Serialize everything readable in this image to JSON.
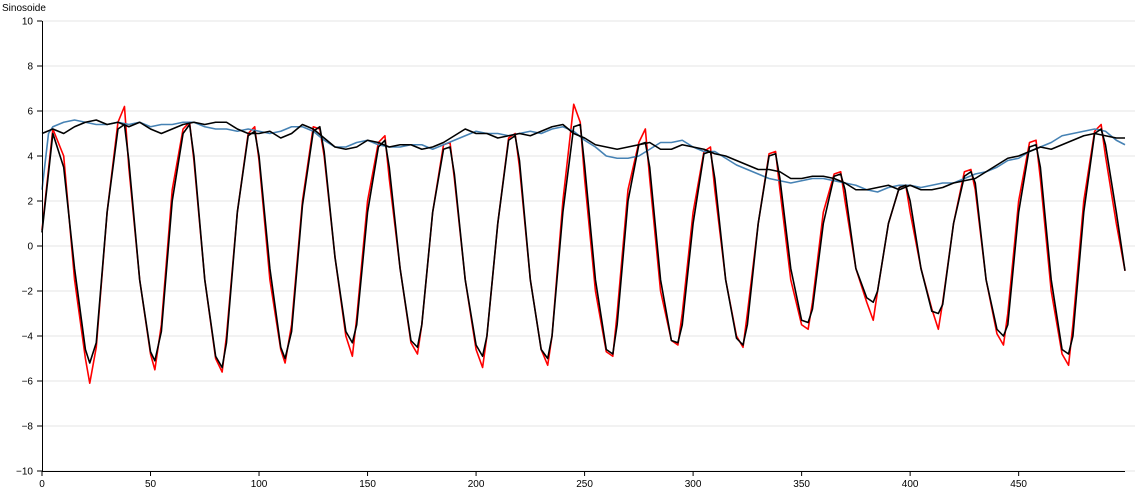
{
  "chart_data": {
    "type": "line",
    "ylabel": "Sinosoide",
    "xlim": [
      0,
      499
    ],
    "ylim": [
      -10,
      10
    ],
    "x_ticks": [
      0,
      50,
      100,
      150,
      200,
      250,
      300,
      350,
      400,
      450
    ],
    "y_ticks": [
      -10,
      -8,
      -6,
      -4,
      -2,
      0,
      2,
      4,
      6,
      8,
      10
    ],
    "y_tick_labels": [
      "−10",
      "−8",
      "−6",
      "−4",
      "−2",
      "0",
      "2",
      "4",
      "6",
      "8",
      "10"
    ],
    "grid": true,
    "legend": false,
    "series": [
      {
        "color": "#ff0000",
        "x": [
          0,
          5,
          10,
          15,
          20,
          22,
          25,
          30,
          35,
          38,
          40,
          45,
          50,
          52,
          55,
          60,
          65,
          68,
          70,
          75,
          80,
          83,
          85,
          90,
          95,
          98,
          100,
          105,
          110,
          112,
          115,
          120,
          125,
          128,
          130,
          135,
          140,
          143,
          145,
          150,
          155,
          158,
          160,
          165,
          170,
          173,
          175,
          180,
          185,
          188,
          190,
          195,
          200,
          203,
          205,
          210,
          215,
          218,
          220,
          225,
          230,
          233,
          235,
          240,
          245,
          248,
          250,
          255,
          260,
          263,
          265,
          270,
          275,
          278,
          280,
          285,
          290,
          293,
          295,
          300,
          305,
          308,
          310,
          315,
          320,
          323,
          325,
          330,
          335,
          338,
          340,
          345,
          350,
          353,
          355,
          360,
          365,
          368,
          370,
          375,
          380,
          383,
          385,
          390,
          395,
          398,
          400,
          405,
          410,
          413,
          415,
          420,
          425,
          428,
          430,
          435,
          440,
          443,
          445,
          450,
          455,
          458,
          460,
          465,
          470,
          473,
          475,
          480,
          485,
          488,
          490,
          495,
          499
        ],
        "values": [
          0.7,
          5.2,
          4.0,
          -1.5,
          -5.0,
          -6.1,
          -4.5,
          1.5,
          5.5,
          6.2,
          3.5,
          -1.5,
          -4.8,
          -5.5,
          -3.5,
          2.5,
          5.2,
          5.5,
          3.8,
          -1.5,
          -5.0,
          -5.6,
          -4.0,
          1.5,
          5.0,
          5.3,
          3.8,
          -1.5,
          -4.6,
          -5.2,
          -3.5,
          2.0,
          5.3,
          5.2,
          4.0,
          -0.5,
          -4.0,
          -4.9,
          -3.2,
          2.0,
          4.6,
          4.9,
          3.0,
          -1.0,
          -4.3,
          -4.8,
          -3.5,
          1.5,
          4.5,
          4.6,
          3.0,
          -1.5,
          -4.6,
          -5.4,
          -4.0,
          1.0,
          4.8,
          5.0,
          3.5,
          -1.5,
          -4.6,
          -5.3,
          -4.0,
          2.0,
          6.3,
          5.5,
          3.0,
          -2.0,
          -4.7,
          -4.9,
          -3.0,
          2.5,
          4.6,
          5.2,
          3.0,
          -2.0,
          -4.2,
          -4.4,
          -3.0,
          1.5,
          4.2,
          4.4,
          2.5,
          -1.5,
          -4.0,
          -4.5,
          -3.0,
          1.0,
          4.1,
          4.2,
          2.5,
          -1.5,
          -3.5,
          -3.7,
          -2.5,
          1.5,
          3.2,
          3.3,
          2.0,
          -1.0,
          -2.5,
          -3.3,
          -2.0,
          1.0,
          2.6,
          2.7,
          1.5,
          -1.0,
          -2.8,
          -3.7,
          -2.5,
          1.0,
          3.3,
          3.4,
          2.5,
          -1.5,
          -3.9,
          -4.4,
          -3.0,
          2.0,
          4.6,
          4.7,
          3.0,
          -2.0,
          -4.8,
          -5.3,
          -3.5,
          2.0,
          5.1,
          5.4,
          4.0,
          1.0,
          -1.1
        ]
      },
      {
        "color": "#4682b4",
        "x": [
          0,
          3,
          5,
          10,
          15,
          20,
          25,
          30,
          35,
          40,
          45,
          50,
          55,
          60,
          65,
          70,
          75,
          80,
          85,
          90,
          95,
          100,
          105,
          110,
          115,
          120,
          125,
          130,
          135,
          140,
          145,
          150,
          155,
          160,
          165,
          170,
          175,
          180,
          185,
          190,
          195,
          200,
          205,
          210,
          215,
          220,
          225,
          230,
          235,
          240,
          245,
          250,
          255,
          260,
          265,
          270,
          275,
          280,
          285,
          290,
          295,
          300,
          305,
          310,
          315,
          320,
          325,
          330,
          335,
          340,
          345,
          350,
          355,
          360,
          365,
          370,
          375,
          380,
          385,
          390,
          395,
          400,
          405,
          410,
          415,
          420,
          425,
          430,
          435,
          440,
          445,
          450,
          455,
          460,
          465,
          470,
          475,
          480,
          485,
          490,
          495,
          499
        ],
        "values": [
          2.5,
          5.0,
          5.3,
          5.5,
          5.6,
          5.5,
          5.4,
          5.4,
          5.5,
          5.4,
          5.5,
          5.3,
          5.4,
          5.4,
          5.5,
          5.5,
          5.3,
          5.2,
          5.2,
          5.1,
          5.2,
          5.1,
          5.0,
          5.1,
          5.3,
          5.3,
          5.1,
          4.7,
          4.4,
          4.4,
          4.6,
          4.7,
          4.5,
          4.4,
          4.4,
          4.5,
          4.5,
          4.3,
          4.5,
          4.7,
          4.9,
          5.1,
          5.0,
          5.0,
          4.9,
          5.0,
          5.1,
          5.0,
          5.2,
          5.3,
          5.1,
          4.7,
          4.4,
          4.0,
          3.9,
          3.9,
          4.0,
          4.3,
          4.6,
          4.6,
          4.7,
          4.4,
          4.2,
          4.2,
          3.9,
          3.6,
          3.4,
          3.2,
          3.0,
          2.9,
          2.8,
          2.9,
          3.0,
          3.0,
          2.9,
          2.8,
          2.7,
          2.5,
          2.4,
          2.6,
          2.7,
          2.7,
          2.6,
          2.7,
          2.8,
          2.8,
          3.0,
          3.2,
          3.3,
          3.5,
          3.8,
          3.9,
          4.2,
          4.4,
          4.6,
          4.9,
          5.0,
          5.1,
          5.2,
          5.1,
          4.7,
          4.5
        ]
      },
      {
        "color": "#000000",
        "x": [
          0,
          5,
          10,
          15,
          20,
          22,
          25,
          30,
          35,
          38,
          40,
          45,
          50,
          52,
          55,
          60,
          65,
          68,
          70,
          75,
          80,
          83,
          85,
          90,
          95,
          98,
          100,
          105,
          110,
          112,
          115,
          120,
          125,
          128,
          130,
          135,
          140,
          143,
          145,
          150,
          155,
          158,
          160,
          165,
          170,
          173,
          175,
          180,
          185,
          188,
          190,
          195,
          200,
          203,
          205,
          210,
          215,
          218,
          220,
          225,
          230,
          233,
          235,
          240,
          245,
          248,
          250,
          255,
          260,
          263,
          265,
          270,
          275,
          278,
          280,
          285,
          290,
          293,
          295,
          300,
          305,
          308,
          310,
          315,
          320,
          323,
          325,
          330,
          335,
          338,
          340,
          345,
          350,
          353,
          355,
          360,
          365,
          368,
          370,
          375,
          380,
          383,
          385,
          390,
          395,
          398,
          400,
          405,
          410,
          413,
          415,
          420,
          425,
          428,
          430,
          435,
          440,
          443,
          445,
          450,
          455,
          458,
          460,
          465,
          470,
          473,
          475,
          480,
          485,
          488,
          490,
          495,
          499
        ],
        "values": [
          0.6,
          5.0,
          3.5,
          -1.0,
          -4.6,
          -5.2,
          -4.3,
          1.5,
          5.2,
          5.4,
          3.8,
          -1.5,
          -4.7,
          -5.1,
          -3.8,
          2.0,
          5.0,
          5.4,
          4.0,
          -1.5,
          -4.9,
          -5.4,
          -4.3,
          1.5,
          4.9,
          5.1,
          4.0,
          -1.0,
          -4.5,
          -5.0,
          -3.8,
          1.8,
          5.1,
          5.3,
          4.2,
          -0.5,
          -3.8,
          -4.3,
          -3.5,
          1.5,
          4.4,
          4.7,
          3.5,
          -1.0,
          -4.2,
          -4.5,
          -3.5,
          1.5,
          4.3,
          4.4,
          3.2,
          -1.5,
          -4.4,
          -4.9,
          -4.0,
          1.0,
          4.7,
          4.9,
          3.8,
          -1.5,
          -4.6,
          -5.0,
          -4.0,
          1.5,
          5.3,
          5.4,
          3.6,
          -1.5,
          -4.6,
          -4.8,
          -3.5,
          2.0,
          4.5,
          4.6,
          3.5,
          -1.5,
          -4.2,
          -4.3,
          -3.5,
          1.0,
          4.1,
          4.2,
          3.0,
          -1.5,
          -4.1,
          -4.4,
          -3.5,
          1.0,
          4.0,
          4.1,
          3.0,
          -1.0,
          -3.3,
          -3.4,
          -2.8,
          1.0,
          3.1,
          3.2,
          2.5,
          -1.0,
          -2.3,
          -2.5,
          -2.0,
          1.0,
          2.6,
          2.7,
          2.0,
          -1.0,
          -2.9,
          -3.0,
          -2.6,
          1.0,
          3.1,
          3.3,
          2.8,
          -1.5,
          -3.7,
          -4.0,
          -3.5,
          1.5,
          4.4,
          4.5,
          3.5,
          -1.5,
          -4.6,
          -4.8,
          -4.0,
          1.5,
          5.0,
          5.2,
          4.5,
          1.5,
          -1.1
        ]
      },
      {
        "color": "#000000",
        "x": [
          0,
          5,
          10,
          15,
          20,
          25,
          30,
          35,
          40,
          45,
          50,
          55,
          60,
          65,
          70,
          75,
          80,
          85,
          90,
          95,
          100,
          105,
          110,
          115,
          120,
          125,
          130,
          135,
          140,
          145,
          150,
          155,
          160,
          165,
          170,
          175,
          180,
          185,
          190,
          195,
          200,
          205,
          210,
          215,
          220,
          225,
          230,
          235,
          240,
          245,
          250,
          255,
          260,
          265,
          270,
          275,
          280,
          285,
          290,
          295,
          300,
          305,
          310,
          315,
          320,
          325,
          330,
          335,
          340,
          345,
          350,
          355,
          360,
          365,
          370,
          375,
          380,
          385,
          390,
          395,
          400,
          405,
          410,
          415,
          420,
          425,
          430,
          435,
          440,
          445,
          450,
          455,
          460,
          465,
          470,
          475,
          480,
          485,
          490,
          495,
          499
        ],
        "values": [
          5.0,
          5.2,
          5.0,
          5.3,
          5.5,
          5.6,
          5.4,
          5.5,
          5.3,
          5.5,
          5.2,
          5.0,
          5.2,
          5.4,
          5.5,
          5.4,
          5.5,
          5.5,
          5.2,
          5.0,
          5.0,
          5.1,
          4.8,
          5.0,
          5.4,
          5.2,
          4.8,
          4.4,
          4.3,
          4.4,
          4.7,
          4.6,
          4.4,
          4.5,
          4.5,
          4.3,
          4.4,
          4.6,
          4.9,
          5.2,
          5.0,
          5.0,
          4.8,
          4.9,
          5.0,
          4.9,
          5.1,
          5.3,
          5.4,
          5.0,
          4.8,
          4.5,
          4.4,
          4.3,
          4.4,
          4.5,
          4.6,
          4.3,
          4.3,
          4.5,
          4.4,
          4.3,
          4.1,
          4.0,
          3.8,
          3.6,
          3.4,
          3.4,
          3.3,
          3.0,
          3.0,
          3.1,
          3.1,
          3.0,
          2.8,
          2.5,
          2.5,
          2.6,
          2.7,
          2.5,
          2.7,
          2.5,
          2.5,
          2.6,
          2.8,
          2.9,
          3.0,
          3.3,
          3.6,
          3.9,
          4.0,
          4.2,
          4.4,
          4.3,
          4.5,
          4.7,
          4.9,
          5.0,
          4.9,
          4.8,
          4.8
        ]
      }
    ]
  }
}
